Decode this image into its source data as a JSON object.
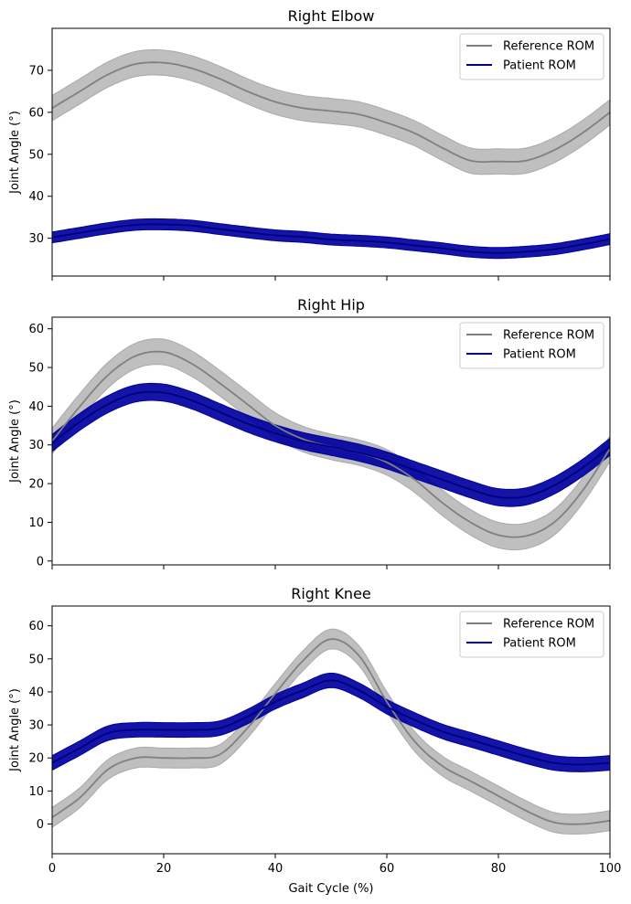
{
  "colors": {
    "reference": "#808080",
    "reference_band": "#a9a9a9",
    "patient": "#000080",
    "patient_band": "#0000a0"
  },
  "chart_data": [
    {
      "type": "line",
      "title": "Right Elbow",
      "xlabel": "",
      "ylabel": "Joint Angle (°)",
      "xlim": [
        0,
        100
      ],
      "ylim": [
        21,
        80
      ],
      "xticks": [
        0,
        20,
        40,
        60,
        80,
        100
      ],
      "yticks": [
        30,
        40,
        50,
        60,
        70
      ],
      "show_xtick_labels": false,
      "grid": false,
      "legend": "top-right",
      "x": [
        0,
        5,
        10,
        15,
        20,
        25,
        30,
        35,
        40,
        45,
        50,
        55,
        60,
        65,
        70,
        75,
        80,
        85,
        90,
        95,
        100
      ],
      "series": [
        {
          "name": "Reference ROM",
          "band": 3,
          "values": [
            61,
            65,
            69,
            71.5,
            71.8,
            70.5,
            68,
            65,
            62.5,
            61,
            60.3,
            59.5,
            57.5,
            55,
            51.5,
            48.5,
            48.3,
            48.5,
            51,
            55,
            60
          ]
        },
        {
          "name": "Patient ROM",
          "band": 1.3,
          "values": [
            30.2,
            31.3,
            32.4,
            33.2,
            33.3,
            33.0,
            32.2,
            31.4,
            30.7,
            30.3,
            29.7,
            29.4,
            29.0,
            28.3,
            27.6,
            26.8,
            26.5,
            26.8,
            27.4,
            28.5,
            29.8
          ]
        }
      ]
    },
    {
      "type": "line",
      "title": "Right Hip",
      "xlabel": "",
      "ylabel": "Joint Angle (°)",
      "xlim": [
        0,
        100
      ],
      "ylim": [
        -1,
        63
      ],
      "xticks": [
        0,
        20,
        40,
        60,
        80,
        100
      ],
      "yticks": [
        0,
        10,
        20,
        30,
        40,
        50,
        60
      ],
      "show_xtick_labels": false,
      "grid": false,
      "legend": "top-right",
      "x": [
        0,
        5,
        10,
        15,
        20,
        25,
        30,
        35,
        40,
        45,
        50,
        55,
        60,
        65,
        70,
        75,
        80,
        85,
        90,
        95,
        100
      ],
      "series": [
        {
          "name": "Reference ROM",
          "band": 3.3,
          "values": [
            31,
            40,
            48,
            53,
            54,
            51,
            46,
            40.5,
            35,
            31.5,
            29.5,
            28,
            25.5,
            21,
            15,
            10,
            6.7,
            6.5,
            10,
            18,
            29
          ]
        },
        {
          "name": "Patient ROM",
          "band": 2.2,
          "values": [
            30.5,
            36,
            40.5,
            43.3,
            43.5,
            41.5,
            38.5,
            35.5,
            33,
            31,
            29.5,
            28,
            26,
            23.5,
            21,
            18.5,
            16.5,
            16.7,
            19.5,
            24,
            29.5
          ]
        }
      ]
    },
    {
      "type": "line",
      "title": "Right Knee",
      "xlabel": "Gait Cycle (%)",
      "ylabel": "Joint Angle (°)",
      "xlim": [
        0,
        100
      ],
      "ylim": [
        -9,
        66
      ],
      "xticks": [
        0,
        20,
        40,
        60,
        80,
        100
      ],
      "yticks": [
        0,
        10,
        20,
        30,
        40,
        50,
        60
      ],
      "show_xtick_labels": true,
      "grid": false,
      "legend": "top-right",
      "x": [
        0,
        5,
        10,
        15,
        20,
        25,
        30,
        35,
        40,
        45,
        50,
        55,
        60,
        65,
        70,
        75,
        80,
        85,
        90,
        95,
        100
      ],
      "series": [
        {
          "name": "Reference ROM",
          "band": 3,
          "values": [
            2,
            8,
            16.5,
            20,
            20,
            20,
            21,
            29,
            39.5,
            49.5,
            56,
            51,
            37,
            25,
            17.5,
            13,
            8.5,
            4,
            0.5,
            0,
            1
          ]
        },
        {
          "name": "Patient ROM",
          "band": 2.2,
          "values": [
            18.5,
            23,
            27.5,
            28.5,
            28.5,
            28.5,
            29,
            32.5,
            37,
            40.5,
            43.5,
            40.5,
            35.5,
            31.5,
            28,
            25.5,
            23,
            20.5,
            18.5,
            18,
            18.5
          ]
        }
      ]
    }
  ]
}
